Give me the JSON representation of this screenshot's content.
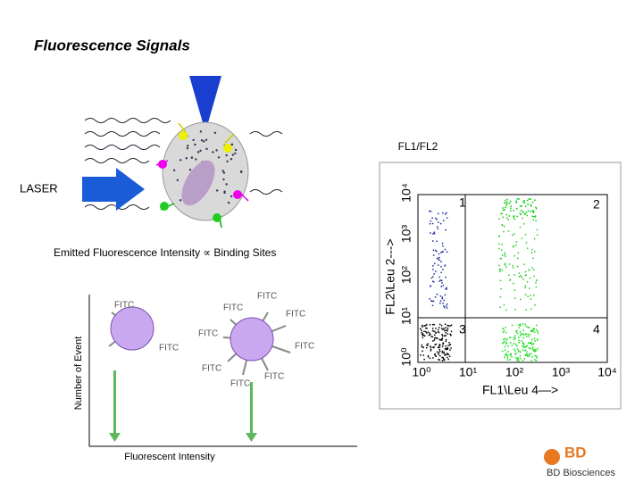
{
  "title": "Fluorescence Signals",
  "diagram": {
    "laser_label": "LASER",
    "caption": "Emitted Fluorescence Intensity ∝ Binding Sites"
  },
  "histogram": {
    "y_label": "Number of Event",
    "x_label": "Fluorescent Intensity",
    "fitc_labels": [
      "FITC",
      "FITC",
      "FITC",
      "FITC",
      "FITC",
      "FITC",
      "FITC",
      "FITC",
      "FITC",
      "FITC"
    ]
  },
  "dot_plot": {
    "title": "FL1/FL2",
    "x_label": "FL1\\Leu 4—>",
    "y_label": "FL2\\Leu 2--->",
    "x_ticks": [
      "10⁰",
      "10¹",
      "10²",
      "10³",
      "10⁴"
    ],
    "y_ticks": [
      "10⁰",
      "10¹",
      "10²",
      "10³",
      "10⁴"
    ],
    "quadrants": [
      "1",
      "2",
      "3",
      "4"
    ]
  },
  "logo": {
    "mark": "BD",
    "name": "BD Biosciences"
  }
}
